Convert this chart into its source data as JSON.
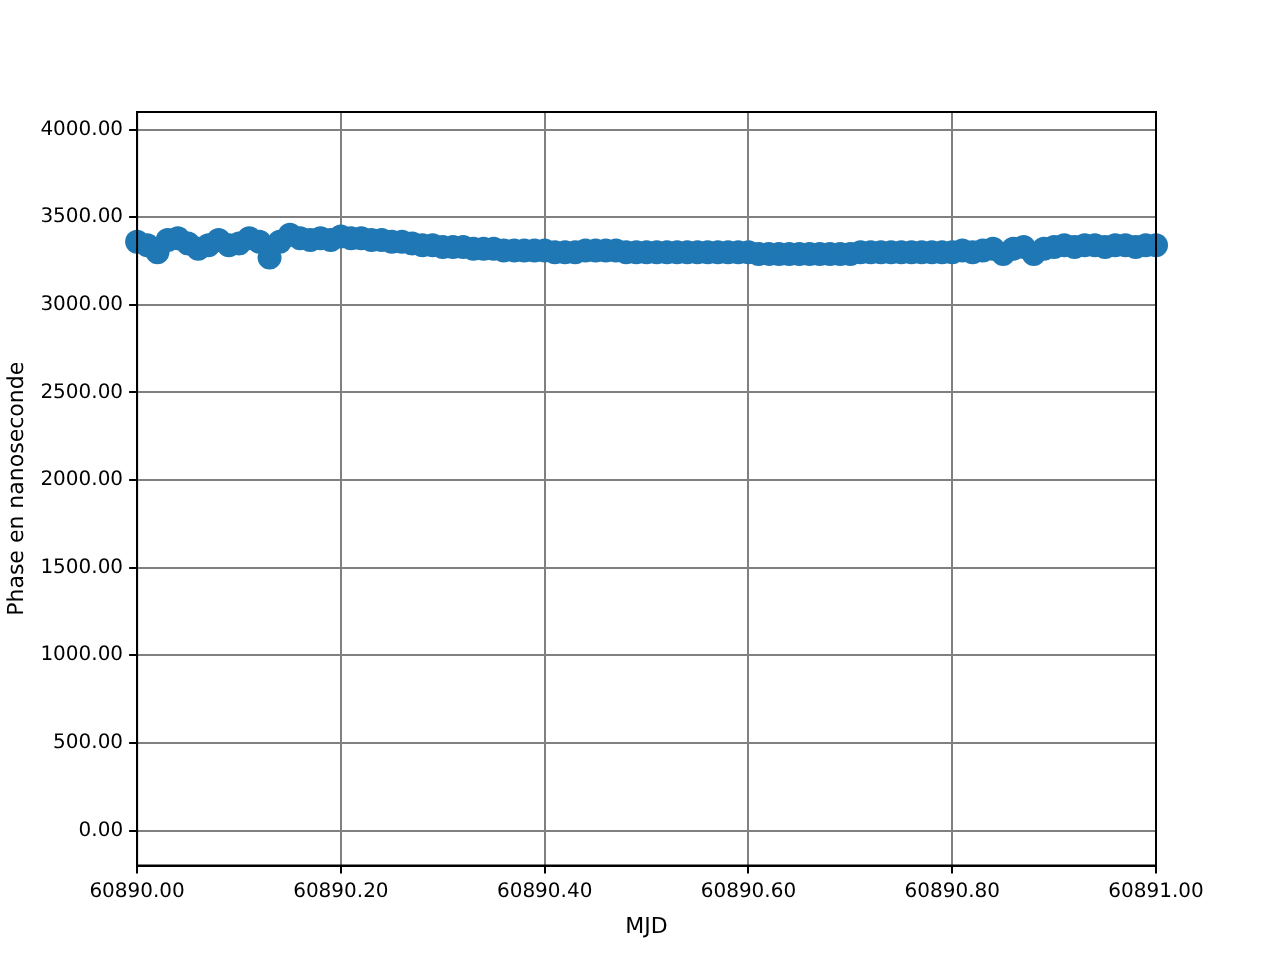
{
  "chart_data": {
    "type": "scatter",
    "xlabel": "MJD",
    "ylabel": "Phase en nanoseconde",
    "grid": true,
    "marker": "circle",
    "legend": false,
    "xlim": [
      60890,
      60891
    ],
    "xticks": [
      {
        "value": 60890,
        "label": "60890.00"
      },
      {
        "value": 60890.2,
        "label": "60890.20"
      },
      {
        "value": 60890.4,
        "label": "60890.40"
      },
      {
        "value": 60890.6,
        "label": "60890.60"
      },
      {
        "value": 60890.8,
        "label": "60890.80"
      },
      {
        "value": 60891,
        "label": "60891.00"
      }
    ],
    "ylim": [
      -200,
      4100
    ],
    "yticks": [
      {
        "value": 0,
        "label": "0.00"
      },
      {
        "value": 500,
        "label": "500.00"
      },
      {
        "value": 1000,
        "label": "1000.00"
      },
      {
        "value": 1500,
        "label": "1500.00"
      },
      {
        "value": 2000,
        "label": "2000.00"
      },
      {
        "value": 2500,
        "label": "2500.00"
      },
      {
        "value": 3000,
        "label": "3000.00"
      },
      {
        "value": 3500,
        "label": "3500.00"
      },
      {
        "value": 4000,
        "label": "4000.00"
      }
    ],
    "series": [
      {
        "color": "#1f77b4",
        "x": [
          60890,
          60890.01,
          60890.02,
          60890.03,
          60890.04,
          60890.05,
          60890.06,
          60890.07,
          60890.08,
          60890.09,
          60890.1,
          60890.11,
          60890.12,
          60890.13,
          60890.14,
          60890.15,
          60890.16,
          60890.17,
          60890.18,
          60890.19,
          60890.2,
          60890.21,
          60890.22,
          60890.23,
          60890.24,
          60890.25,
          60890.26,
          60890.27,
          60890.28,
          60890.29,
          60890.3,
          60890.31,
          60890.32,
          60890.33,
          60890.34,
          60890.35,
          60890.36,
          60890.37,
          60890.38,
          60890.39,
          60890.4,
          60890.41,
          60890.42,
          60890.43,
          60890.44,
          60890.45,
          60890.46,
          60890.47,
          60890.48,
          60890.49,
          60890.5,
          60890.51,
          60890.52,
          60890.53,
          60890.54,
          60890.55,
          60890.56,
          60890.57,
          60890.58,
          60890.59,
          60890.6,
          60890.61,
          60890.62,
          60890.63,
          60890.64,
          60890.65,
          60890.66,
          60890.67,
          60890.68,
          60890.69,
          60890.7,
          60890.71,
          60890.72,
          60890.73,
          60890.74,
          60890.75,
          60890.76,
          60890.77,
          60890.78,
          60890.79,
          60890.8,
          60890.81,
          60890.82,
          60890.83,
          60890.84,
          60890.85,
          60890.86,
          60890.87,
          60890.88,
          60890.89,
          60890.9,
          60890.91,
          60890.92,
          60890.93,
          60890.94,
          60890.95,
          60890.96,
          60890.97,
          60890.98,
          60890.99,
          60891
        ],
        "values": [
          3360,
          3340,
          3300,
          3370,
          3380,
          3350,
          3320,
          3340,
          3370,
          3340,
          3350,
          3380,
          3360,
          3270,
          3360,
          3400,
          3380,
          3370,
          3380,
          3370,
          3390,
          3380,
          3380,
          3370,
          3370,
          3360,
          3360,
          3350,
          3340,
          3340,
          3330,
          3330,
          3330,
          3320,
          3320,
          3320,
          3310,
          3310,
          3310,
          3310,
          3310,
          3300,
          3300,
          3300,
          3310,
          3310,
          3310,
          3310,
          3300,
          3300,
          3300,
          3300,
          3300,
          3300,
          3300,
          3300,
          3300,
          3300,
          3300,
          3300,
          3300,
          3290,
          3290,
          3290,
          3290,
          3290,
          3290,
          3290,
          3290,
          3290,
          3290,
          3300,
          3300,
          3300,
          3300,
          3300,
          3300,
          3300,
          3300,
          3300,
          3300,
          3310,
          3300,
          3310,
          3320,
          3290,
          3320,
          3330,
          3290,
          3320,
          3330,
          3340,
          3330,
          3340,
          3340,
          3330,
          3340,
          3340,
          3330,
          3340,
          3340
        ]
      }
    ]
  }
}
